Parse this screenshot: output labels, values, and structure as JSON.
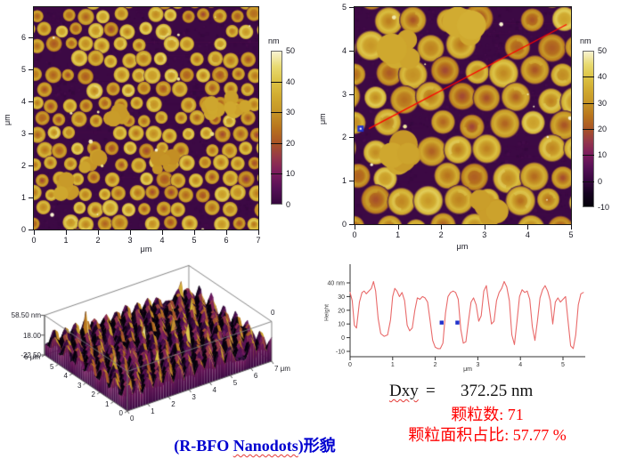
{
  "texts": {
    "dxy_label": "Dxy",
    "dxy_equals": "=",
    "dxy_value": "372.25 nm",
    "stat_line1": "颗粒数: 71",
    "stat_line2": "颗粒面积占比: 57.77 %",
    "caption_pre": "(R-BFO ",
    "caption_underlined": "Nanodots",
    "caption_post": ")形貌"
  },
  "colors": {
    "caption_blue": "#0000d0",
    "stat_red": "#ff0000",
    "section_line_red": "#ff0000",
    "marker_blue": "#2233cc",
    "profile_curve": "#e96a6a",
    "colormap": [
      [
        -10,
        "#05010a"
      ],
      [
        -5,
        "#14021f"
      ],
      [
        0,
        "#36073f"
      ],
      [
        5,
        "#551056"
      ],
      [
        10,
        "#7a1b5e"
      ],
      [
        15,
        "#94364b"
      ],
      [
        20,
        "#a95426"
      ],
      [
        25,
        "#b8741d"
      ],
      [
        30,
        "#c59426"
      ],
      [
        35,
        "#d0a92f"
      ],
      [
        40,
        "#dcc243"
      ],
      [
        45,
        "#e8da70"
      ],
      [
        50,
        "#f8f3d2"
      ]
    ]
  },
  "chart_data": [
    {
      "id": "afm-top-left",
      "type": "heatmap",
      "description": "AFM topography image: dense monolayer of circular gold nanodots on dark purple substrate",
      "xlabel": "μm",
      "ylabel": "μm",
      "x_range": [
        0,
        7
      ],
      "y_range": [
        0,
        6.94
      ],
      "x_ticks": [
        0,
        1,
        2,
        3,
        4,
        5,
        6,
        7
      ],
      "y_ticks": [
        0,
        1,
        2,
        3,
        4,
        5,
        6
      ],
      "colorbar": {
        "label": "nm",
        "range": [
          0,
          50
        ],
        "ticks": [
          50,
          40,
          30,
          20,
          10,
          0
        ]
      }
    },
    {
      "id": "afm-top-right",
      "type": "heatmap",
      "description": "AFM topography image with red section line used for the height profile",
      "xlabel": "μm",
      "ylabel": "μm",
      "x_range": [
        0,
        5
      ],
      "y_range": [
        0,
        5
      ],
      "x_ticks": [
        0,
        1,
        2,
        3,
        4,
        5
      ],
      "y_ticks": [
        0,
        1,
        2,
        3,
        4,
        5
      ],
      "colorbar": {
        "label": "nm",
        "range": [
          -10,
          50
        ],
        "ticks": [
          50,
          40,
          30,
          20,
          10,
          0,
          -10
        ]
      },
      "section_line": {
        "x1": 0.33,
        "y1": 2.2,
        "x2": 4.9,
        "y2": 4.6,
        "color": "#ff0000"
      },
      "marker": {
        "x": 0.14,
        "y": 2.2,
        "color": "#2233cc"
      }
    },
    {
      "id": "surface-3d",
      "type": "surface",
      "description": "3D rendering of nanodot topography",
      "z_tick_labels": [
        "58.50 nm",
        "18.00",
        "-22.50"
      ],
      "z_values": [
        58.5,
        18.0,
        -22.5
      ],
      "y_axis_labels": [
        "0",
        "1",
        "2",
        "3",
        "4",
        "5",
        "6 μm"
      ],
      "x_axis_labels": [
        "0",
        "1",
        "2",
        "3",
        "4",
        "5",
        "6",
        "7 μm"
      ],
      "far_corner_label": "0",
      "x_range_um": [
        0,
        7
      ],
      "y_range_um": [
        0,
        6
      ]
    },
    {
      "id": "height-profile",
      "type": "line",
      "xlabel": "μm",
      "ylabel": "Height",
      "x_range": [
        0,
        5.5
      ],
      "y_range": [
        -14,
        51
      ],
      "x_ticks": [
        0,
        1,
        2,
        3,
        4,
        5
      ],
      "y_ticks": [
        40,
        30,
        20,
        10,
        0,
        -10
      ],
      "y_tick_labels": [
        "40 nm",
        "30",
        "20",
        "10",
        "0",
        "-10"
      ],
      "series": [
        {
          "name": "height-section",
          "color": "#e96a6a",
          "x": [
            0,
            0.05,
            0.1,
            0.15,
            0.22,
            0.28,
            0.33,
            0.38,
            0.44,
            0.5,
            0.55,
            0.6,
            0.66,
            0.72,
            0.8,
            0.88,
            0.95,
            1,
            1.05,
            1.1,
            1.16,
            1.22,
            1.28,
            1.34,
            1.4,
            1.46,
            1.52,
            1.58,
            1.64,
            1.7,
            1.76,
            1.82,
            1.88,
            1.94,
            2,
            2.06,
            2.12,
            2.18,
            2.24,
            2.3,
            2.36,
            2.42,
            2.48,
            2.54,
            2.6,
            2.66,
            2.72,
            2.78,
            2.84,
            2.9,
            2.96,
            3.02,
            3.08,
            3.14,
            3.2,
            3.26,
            3.32,
            3.38,
            3.44,
            3.5,
            3.56,
            3.62,
            3.68,
            3.74,
            3.8,
            3.86,
            3.92,
            3.98,
            4.04,
            4.1,
            4.16,
            4.22,
            4.28,
            4.34,
            4.4,
            4.46,
            4.52,
            4.58,
            4.64,
            4.7,
            4.76,
            4.82,
            4.88,
            4.94,
            5,
            5.06,
            5.12,
            5.18,
            5.24,
            5.3,
            5.36,
            5.42,
            5.48
          ],
          "y": [
            33,
            27,
            9,
            7,
            26,
            33,
            34,
            32,
            34,
            36,
            41,
            34,
            14,
            3,
            1,
            2,
            13,
            30,
            36,
            34,
            30,
            33,
            27,
            9,
            5,
            7,
            20,
            29,
            28,
            30,
            29,
            26,
            12,
            -2,
            -7,
            -8,
            -8,
            -4,
            18,
            30,
            33,
            34,
            33,
            28,
            6,
            -4,
            -3,
            12,
            26,
            29,
            24,
            12,
            16,
            34,
            38,
            24,
            10,
            12,
            27,
            33,
            36,
            41,
            37,
            27,
            2,
            -5,
            12,
            30,
            35,
            33,
            34,
            28,
            8,
            -2,
            12,
            29,
            35,
            38,
            34,
            27,
            10,
            26,
            29,
            26,
            28,
            30,
            12,
            -6,
            -8,
            2,
            24,
            32,
            33
          ]
        }
      ],
      "markers": [
        {
          "x": 2.15,
          "y": 11
        },
        {
          "x": 2.52,
          "y": 11
        }
      ],
      "marker_color": "#2233cc"
    }
  ]
}
